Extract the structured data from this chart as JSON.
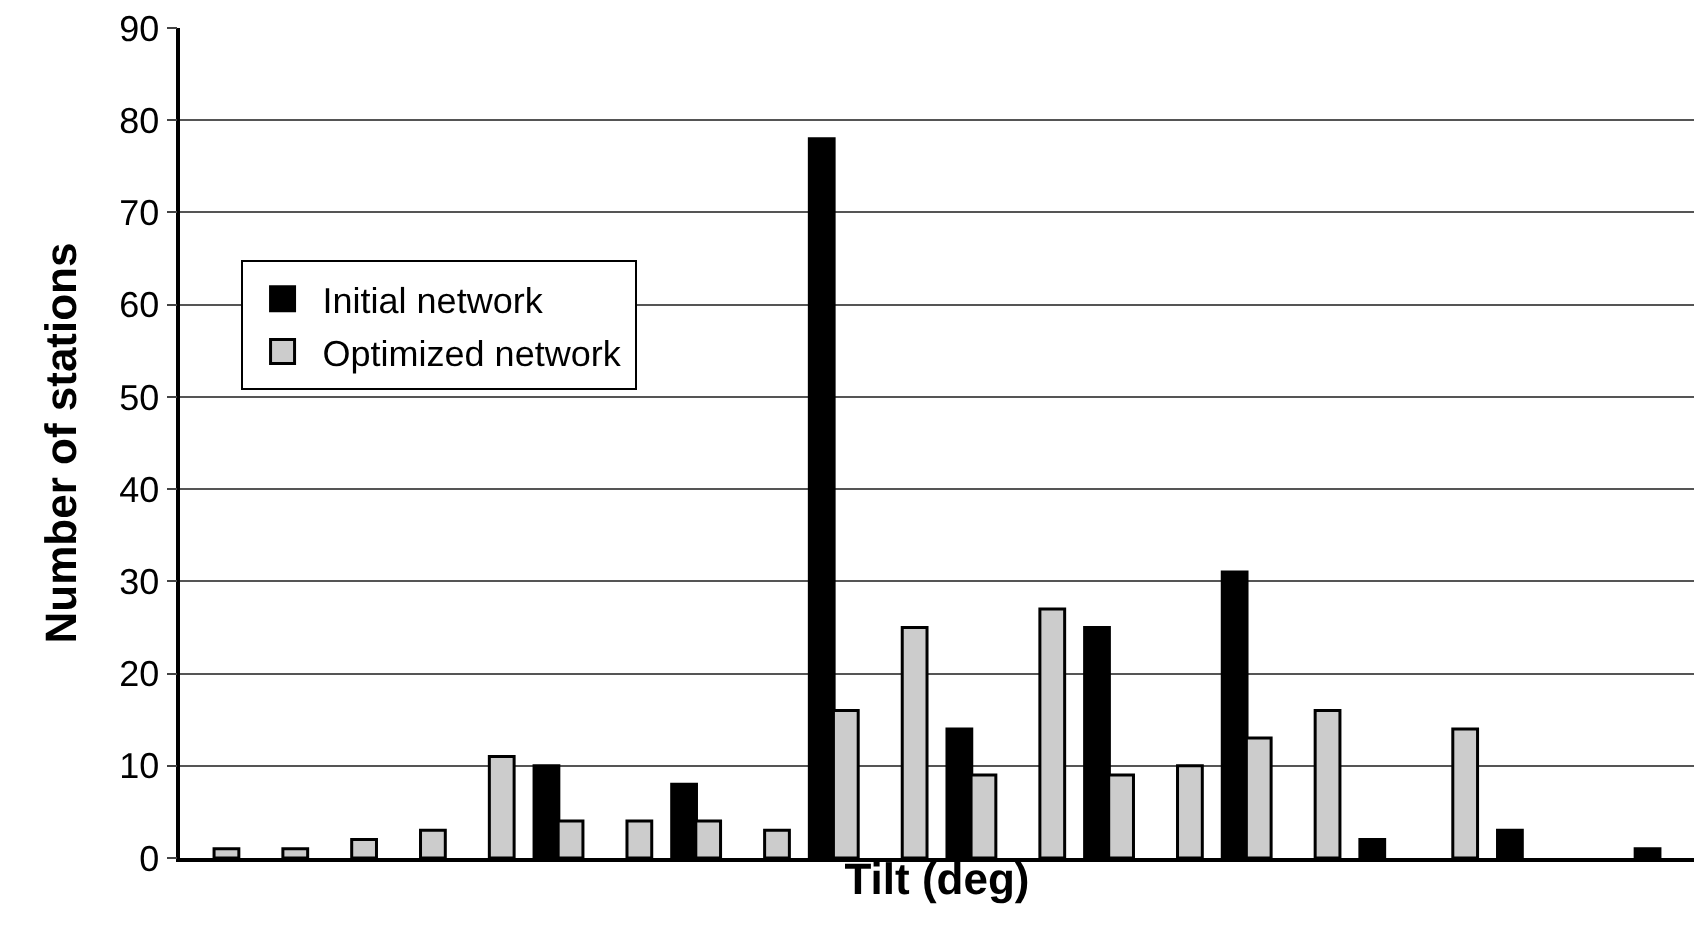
{
  "chart_data": {
    "type": "bar",
    "xlabel": "Tilt (deg)",
    "ylabel": "Number of stations",
    "categories": [
      null,
      null,
      null,
      null,
      null,
      null,
      null,
      null,
      null,
      null,
      null,
      null,
      null,
      null,
      null,
      null,
      null,
      null,
      null,
      null,
      null,
      null
    ],
    "series": [
      {
        "name": "Initial network",
        "color": "#000000",
        "values": [
          null,
          null,
          null,
          null,
          null,
          10,
          null,
          8,
          null,
          78,
          null,
          14,
          null,
          25,
          null,
          31,
          null,
          2,
          null,
          3,
          null,
          1
        ]
      },
      {
        "name": "Optimized network",
        "color": "#cccccc",
        "values": [
          1,
          1,
          2,
          3,
          11,
          4,
          4,
          4,
          3,
          16,
          25,
          9,
          27,
          9,
          10,
          13,
          16,
          null,
          14,
          null,
          null,
          null
        ]
      }
    ],
    "ylim": [
      0,
      90
    ],
    "yticks": [
      0,
      10,
      20,
      30,
      40,
      50,
      60,
      70,
      80,
      90
    ],
    "grid": "y",
    "legend": "left",
    "tick_labels": "y"
  }
}
